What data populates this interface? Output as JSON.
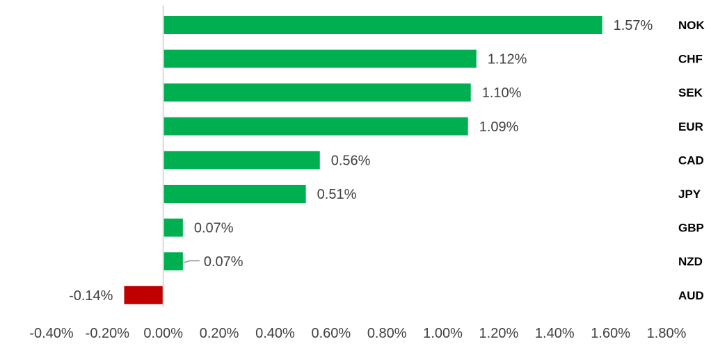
{
  "chart_data": {
    "type": "bar",
    "orientation": "horizontal",
    "categories": [
      "NOK",
      "CHF",
      "SEK",
      "EUR",
      "CAD",
      "JPY",
      "GBP",
      "NZD",
      "AUD"
    ],
    "values": [
      1.57,
      1.12,
      1.1,
      1.09,
      0.56,
      0.51,
      0.07,
      0.07,
      -0.14
    ],
    "data_labels": [
      "1.57%",
      "1.12%",
      "1.10%",
      "1.09%",
      "0.56%",
      "0.51%",
      "0.07%",
      "0.07%",
      "-0.14%"
    ],
    "x_ticks": [
      -0.4,
      -0.2,
      0.0,
      0.2,
      0.4,
      0.6,
      0.8,
      1.0,
      1.2,
      1.4,
      1.6,
      1.8
    ],
    "x_tick_labels": [
      "-0.40%",
      "-0.20%",
      "0.00%",
      "0.20%",
      "0.40%",
      "0.60%",
      "0.80%",
      "1.00%",
      "1.20%",
      "1.40%",
      "1.60%",
      "1.80%"
    ],
    "xlim": [
      -0.4,
      1.8
    ],
    "title": "",
    "xlabel": "",
    "ylabel": "",
    "grid": false,
    "legend": "none",
    "colors": {
      "positive": "#00b050",
      "negative": "#c00000",
      "axis": "#d9d9d9",
      "leader": "#a6a6a6"
    }
  }
}
